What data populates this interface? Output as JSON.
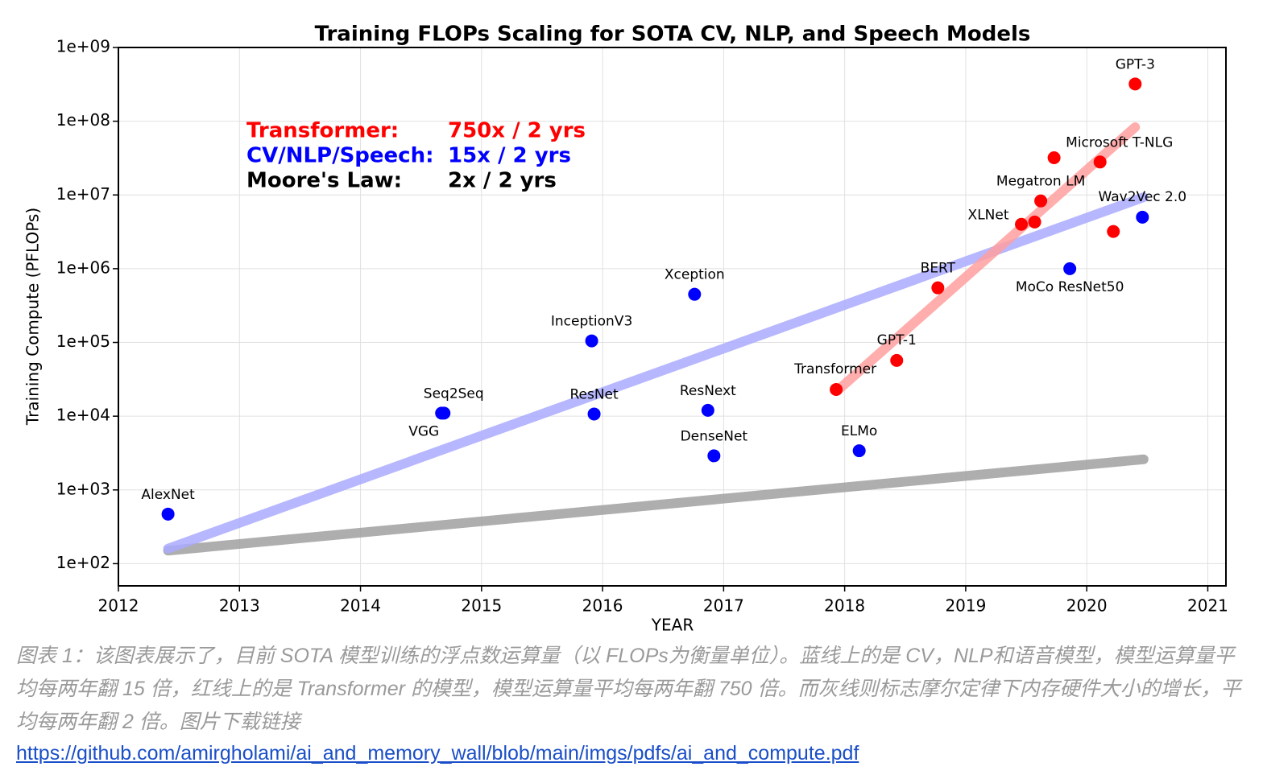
{
  "chart_data": {
    "type": "scatter",
    "title": "Training FLOPs Scaling for SOTA CV, NLP, and Speech Models",
    "xlabel": "YEAR",
    "ylabel": "Training Compute (PFLOPs)",
    "xlim": [
      2012,
      2021.15
    ],
    "xticks": [
      2012,
      2013,
      2014,
      2015,
      2016,
      2017,
      2018,
      2019,
      2020,
      2021
    ],
    "ylim": [
      50,
      1000000000
    ],
    "log_y": true,
    "grid": true,
    "yticks": [
      {
        "value": 100,
        "label": "1e+02"
      },
      {
        "value": 1000,
        "label": "1e+03"
      },
      {
        "value": 10000,
        "label": "1e+04"
      },
      {
        "value": 100000,
        "label": "1e+05"
      },
      {
        "value": 1000000,
        "label": "1e+06"
      },
      {
        "value": 10000000,
        "label": "1e+07"
      },
      {
        "value": 100000000,
        "label": "1e+08"
      },
      {
        "value": 1000000000,
        "label": "1e+09"
      }
    ],
    "series": [
      {
        "color": "#0000ff",
        "x": [
          2012.41,
          2014.67,
          2014.69,
          2015.91,
          2015.93,
          2016.76,
          2016.87,
          2016.92,
          2018.12,
          2019.86,
          2020.46
        ],
        "values": [
          470,
          11000,
          11000,
          105000,
          10700,
          450000,
          12000,
          2900,
          3400,
          1000000,
          5000000
        ],
        "labels": [
          "AlexNet",
          "VGG",
          "Seq2Seq",
          "InceptionV3",
          "ResNet",
          "Xception",
          "ResNext",
          "DenseNet",
          "ELMo",
          "MoCo ResNet50",
          "Wav2Vec 2.0"
        ]
      },
      {
        "color": "#ff0000",
        "x": [
          2017.93,
          2018.43,
          2018.77,
          2019.46,
          2019.57,
          2019.62,
          2019.73,
          2020.11,
          2020.22,
          2020.4
        ],
        "values": [
          23000,
          57000,
          550000,
          4000000,
          4300000,
          8300000,
          32000000,
          28000000,
          3200000,
          320000000
        ],
        "labels": [
          "Transformer",
          "GPT-1",
          "BERT",
          "XLNet",
          null,
          "Megatron LM",
          null,
          "Microsoft T-NLG",
          null,
          "GPT-3"
        ]
      }
    ],
    "trends": [
      {
        "color": "#a0a0a0",
        "x": [
          2012.41,
          2020.47
        ],
        "values": [
          150,
          2600
        ]
      },
      {
        "color": "#aaaaff",
        "x": [
          2012.41,
          2020.47
        ],
        "values": [
          160,
          9300000
        ]
      },
      {
        "color": "#ff9f9f",
        "x": [
          2017.95,
          2020.4
        ],
        "values": [
          23000,
          83000000
        ]
      }
    ],
    "annotations": [
      {
        "label": "Transformer:",
        "rate": "750x / 2 yrs",
        "color": "#ff0000"
      },
      {
        "label": "CV/NLP/Speech:",
        "rate": "15x / 2 yrs",
        "color": "#0000ff"
      },
      {
        "label": "Moore's Law:",
        "rate": "2x / 2 yrs",
        "color": "#000000"
      }
    ]
  },
  "caption": "图表 1：该图表展示了，目前 SOTA 模型训练的浮点数运算量（以 FLOPs为衡量单位）。蓝线上的是 CV，NLP和语音模型，模型运算量平均每两年翻 15 倍，红线上的是 Transformer 的模型，模型运算量平均每两年翻 750 倍。而灰线则标志摩尔定律下内存硬件大小的增长，平均每两年翻 2 倍。图片下载链接",
  "link": "https://github.com/amirgholami/ai_and_memory_wall/blob/main/imgs/pdfs/ai_and_compute.pdf"
}
